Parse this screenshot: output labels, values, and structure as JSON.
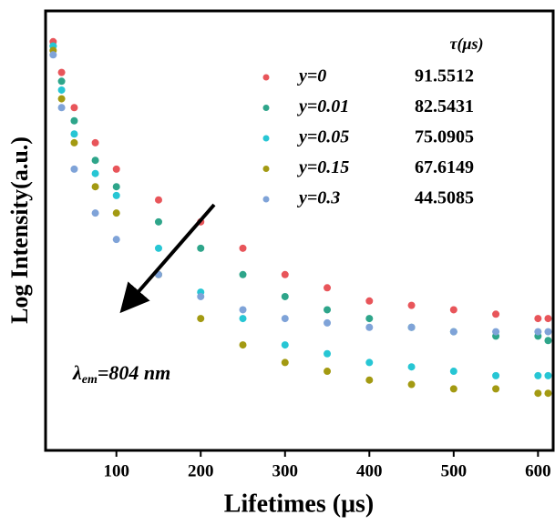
{
  "chart_data": {
    "type": "scatter",
    "x_label": "Lifetimes (μs)",
    "y_label": "Log Intensity(a.u.)",
    "xlim": [
      16,
      618
    ],
    "xticks": [
      100,
      200,
      300,
      400,
      500,
      600
    ],
    "ylim": [
      0,
      100
    ],
    "legend_header": "τ(μs)",
    "annotation": {
      "symbol": "λ",
      "subscript": "em",
      "text": "=804 nm"
    },
    "x": [
      25,
      35,
      50,
      75,
      100,
      150,
      200,
      250,
      300,
      350,
      400,
      450,
      500,
      550,
      600,
      612
    ],
    "series": [
      {
        "name": "y=0",
        "tau": "91.5512",
        "color": "#e8555a",
        "values": [
          93,
          86,
          78,
          70,
          64,
          57,
          52,
          46,
          40,
          37,
          34,
          33,
          32,
          31,
          30,
          30
        ]
      },
      {
        "name": "y=0.01",
        "tau": "82.5431",
        "color": "#2ea58a",
        "values": [
          92,
          84,
          75,
          66,
          60,
          52,
          46,
          40,
          35,
          32,
          30,
          28,
          27,
          26,
          26,
          25
        ]
      },
      {
        "name": "y=0.05",
        "tau": "75.0905",
        "color": "#27c6d4",
        "values": [
          92,
          82,
          72,
          63,
          58,
          46,
          36,
          30,
          24,
          22,
          20,
          19,
          18,
          17,
          17,
          17
        ]
      },
      {
        "name": "y=0.15",
        "tau": "67.6149",
        "color": "#a39a12",
        "values": [
          91,
          80,
          70,
          60,
          54,
          40,
          30,
          24,
          20,
          18,
          16,
          15,
          14,
          14,
          13,
          13
        ]
      },
      {
        "name": "y=0.3",
        "tau": "44.5085",
        "color": "#7fa3d8",
        "values": [
          90,
          78,
          64,
          54,
          48,
          40,
          35,
          32,
          30,
          29,
          28,
          28,
          27,
          27,
          27,
          27
        ]
      }
    ]
  }
}
